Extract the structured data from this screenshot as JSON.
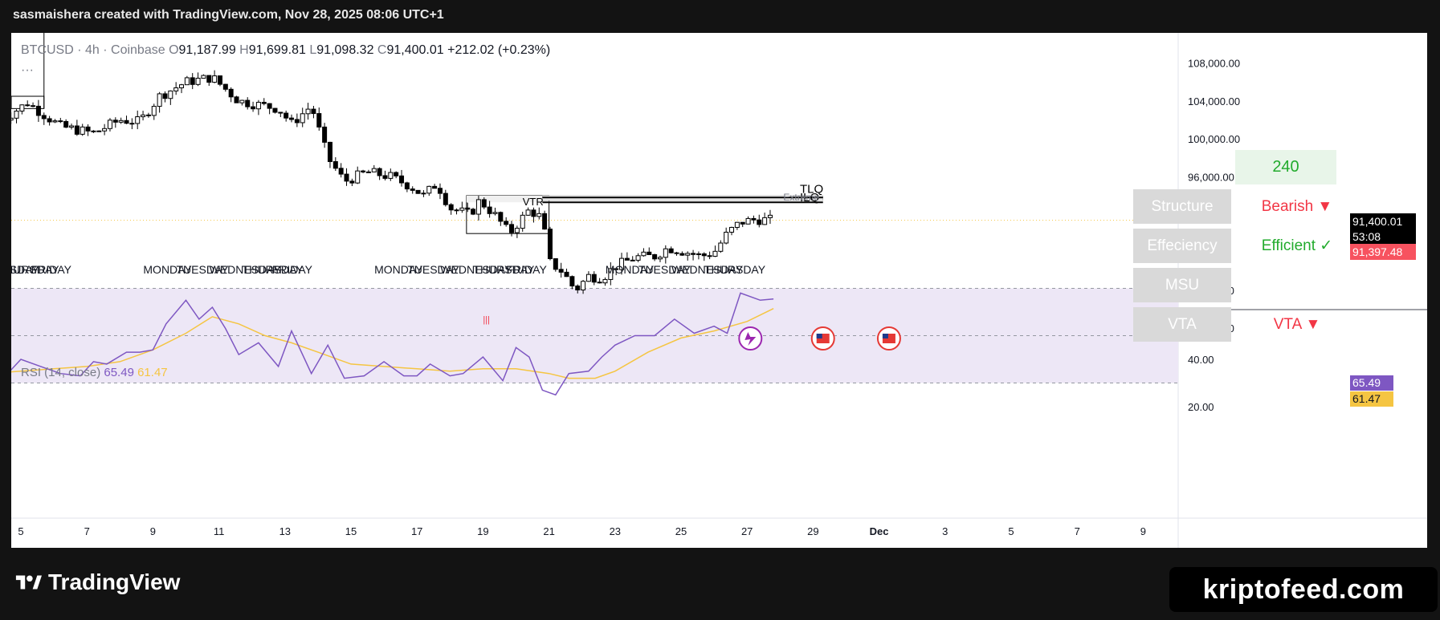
{
  "header": {
    "attribution": "sasmaishera created with TradingView.com, Nov 28, 2025 08:06 UTC+1"
  },
  "legend": {
    "symbol": "BTCUSD · 4h · Coinbase",
    "o_label": "O",
    "o_value": "91,187.99",
    "h_label": "H",
    "h_value": "91,699.81",
    "l_label": "L",
    "l_value": "91,098.32",
    "c_label": "C",
    "c_value": "91,400.01",
    "change": "+212.02 (+0.23%)",
    "more": "···"
  },
  "rsi_legend": {
    "label": "RSI (14, close)",
    "rsi_value": "65.49",
    "ma_value": "61.47"
  },
  "panel": {
    "timeframe": "240",
    "rows": [
      {
        "label": "Structure",
        "value": "Bearish ▼",
        "color": "#f23645"
      },
      {
        "label": "Effeciency",
        "value": "Efficient ✓",
        "color": "#22ab2d"
      },
      {
        "label": "MSU",
        "value": "",
        "color": "#f23645"
      },
      {
        "label": "VTA",
        "value": "VTA ▼",
        "color": "#f23645"
      }
    ]
  },
  "price_tags": {
    "last": "91,400.01",
    "countdown": "53:08",
    "secondary": "91,397.48",
    "rsi": "65.49",
    "rsi_ma": "61.47"
  },
  "annotations": {
    "tlq": "TLQ",
    "ilq": "ILQ",
    "extreme": "Extreme",
    "vtr": "VTR",
    "fib": "|||"
  },
  "day_labels": [
    {
      "text": "EDNESDAY",
      "x_date": 4.0
    },
    {
      "text": "THURSDAY",
      "x_date": 4.6
    },
    {
      "text": "FRIDAY",
      "x_date": 5.6
    },
    {
      "text": "MONDAY",
      "x_date": 9.0
    },
    {
      "text": "TUESDAY",
      "x_date": 10.0
    },
    {
      "text": "WEDNESDAY",
      "x_date": 11.0
    },
    {
      "text": "THURSDAY",
      "x_date": 12.0
    },
    {
      "text": "FRIDAY",
      "x_date": 12.9
    },
    {
      "text": "MONDAY",
      "x_date": 16.0
    },
    {
      "text": "TUESDAY",
      "x_date": 17.0
    },
    {
      "text": "WEDNESDAY",
      "x_date": 18.0
    },
    {
      "text": "THURSDAY",
      "x_date": 19.0
    },
    {
      "text": "FRIDAY",
      "x_date": 20.0
    },
    {
      "text": "MONDAY",
      "x_date": 23.0
    },
    {
      "text": "TUESDAY",
      "x_date": 24.0
    },
    {
      "text": "WEDNESDAY",
      "x_date": 25.0
    },
    {
      "text": "THURSDAY",
      "x_date": 26.0
    }
  ],
  "colors": {
    "up": "#ffffff",
    "down": "#000000",
    "rsi": "#7e57c2",
    "rsi_ma": "#f5c542",
    "rsi_band": "#ede7f6",
    "ob_fill": "#f0f0f0",
    "price_line": "#f5c542",
    "panel_cell": "#d9d9d9",
    "panel_240": "#e8f5e9",
    "bear_tag": "#f7525f"
  },
  "brand": {
    "tradingview": "TradingView",
    "site": "kriptofeed.com"
  },
  "chart_data": {
    "type": "candlestick",
    "symbol": "BTCUSD",
    "interval": "4h",
    "x_axis": {
      "ticks": [
        "5",
        "7",
        "9",
        "11",
        "13",
        "15",
        "17",
        "19",
        "21",
        "23",
        "25",
        "27",
        "29",
        "Dec",
        "3",
        "5",
        "7",
        "9"
      ],
      "tick_dates": [
        5,
        7,
        9,
        11,
        13,
        15,
        17,
        19,
        21,
        23,
        25,
        27,
        29,
        31,
        33,
        35,
        37,
        39
      ]
    },
    "y_axis": {
      "ticks": [
        108000,
        104000,
        100000,
        96000,
        92000,
        88000,
        84000,
        80000
      ],
      "tick_labels": [
        "108,000.00",
        "104,000.00",
        "100,000.00",
        "96,000.00",
        "",
        "",
        "84,000.00",
        "80,000.00"
      ],
      "range": [
        79000,
        109500
      ]
    },
    "last_price": 91400.01,
    "close_path": [
      [
        4.2,
        101500
      ],
      [
        5.2,
        103800
      ],
      [
        6.2,
        101300
      ],
      [
        7.2,
        100600
      ],
      [
        8.0,
        102000
      ],
      [
        8.6,
        101800
      ],
      [
        9.2,
        104500
      ],
      [
        10.0,
        106000
      ],
      [
        10.8,
        106500
      ],
      [
        11.6,
        104000
      ],
      [
        12.2,
        103600
      ],
      [
        12.8,
        103200
      ],
      [
        13.2,
        101600
      ],
      [
        13.8,
        103500
      ],
      [
        14.3,
        98000
      ],
      [
        14.8,
        95500
      ],
      [
        15.5,
        96500
      ],
      [
        16.2,
        96000
      ],
      [
        16.8,
        95000
      ],
      [
        17.2,
        94000
      ],
      [
        17.6,
        95300
      ],
      [
        18.0,
        92700
      ],
      [
        18.6,
        92000
      ],
      [
        18.9,
        93500
      ],
      [
        19.4,
        91800
      ],
      [
        19.8,
        90000
      ],
      [
        20.4,
        92500
      ],
      [
        20.8,
        91600
      ],
      [
        21.0,
        87000
      ],
      [
        21.4,
        86000
      ],
      [
        21.8,
        84000
      ],
      [
        22.2,
        85500
      ],
      [
        22.6,
        85300
      ],
      [
        23.0,
        86500
      ],
      [
        23.6,
        87500
      ],
      [
        24.2,
        87600
      ],
      [
        24.6,
        88500
      ],
      [
        25.2,
        88000
      ],
      [
        25.6,
        87600
      ],
      [
        26.0,
        88000
      ],
      [
        26.4,
        90000
      ],
      [
        26.8,
        91200
      ],
      [
        27.3,
        91500
      ],
      [
        27.8,
        91400
      ]
    ],
    "rsi": {
      "levels": [
        70,
        50,
        30
      ],
      "axis_ticks": [
        40,
        20
      ],
      "value": 65.49,
      "ma_value": 61.47,
      "rsi_path": [
        [
          4.0,
          24
        ],
        [
          4.4,
          31
        ],
        [
          5.0,
          40
        ],
        [
          5.6,
          37
        ],
        [
          6.2,
          34
        ],
        [
          6.8,
          33
        ],
        [
          7.2,
          39
        ],
        [
          7.6,
          38
        ],
        [
          8.2,
          43
        ],
        [
          8.6,
          43
        ],
        [
          9.0,
          44
        ],
        [
          9.4,
          55
        ],
        [
          10.0,
          65
        ],
        [
          10.4,
          57
        ],
        [
          10.8,
          62
        ],
        [
          11.2,
          53
        ],
        [
          11.6,
          42
        ],
        [
          12.2,
          47
        ],
        [
          12.8,
          37
        ],
        [
          13.2,
          52
        ],
        [
          13.8,
          34
        ],
        [
          14.3,
          46
        ],
        [
          14.8,
          32
        ],
        [
          15.4,
          33
        ],
        [
          16.0,
          39
        ],
        [
          16.6,
          33
        ],
        [
          17.0,
          33
        ],
        [
          17.4,
          38
        ],
        [
          18.0,
          33
        ],
        [
          18.4,
          34
        ],
        [
          19.0,
          41
        ],
        [
          19.6,
          31
        ],
        [
          20.0,
          45
        ],
        [
          20.4,
          41
        ],
        [
          20.8,
          27
        ],
        [
          21.2,
          25
        ],
        [
          21.6,
          34
        ],
        [
          22.2,
          35
        ],
        [
          22.6,
          41
        ],
        [
          23.0,
          46
        ],
        [
          23.6,
          50
        ],
        [
          24.2,
          50
        ],
        [
          24.8,
          57
        ],
        [
          25.4,
          51
        ],
        [
          26.0,
          54
        ],
        [
          26.4,
          51
        ],
        [
          26.8,
          68
        ],
        [
          27.4,
          65
        ],
        [
          27.8,
          65.49
        ]
      ],
      "ma_path": [
        [
          4.0,
          34
        ],
        [
          5.0,
          35
        ],
        [
          6.0,
          36
        ],
        [
          7.0,
          37
        ],
        [
          8.0,
          39
        ],
        [
          9.0,
          44
        ],
        [
          10.0,
          51
        ],
        [
          10.8,
          58
        ],
        [
          11.6,
          55
        ],
        [
          12.4,
          50
        ],
        [
          13.2,
          47
        ],
        [
          14.0,
          43
        ],
        [
          15.0,
          38
        ],
        [
          16.0,
          37
        ],
        [
          17.0,
          36
        ],
        [
          18.0,
          35
        ],
        [
          19.0,
          36
        ],
        [
          20.0,
          36
        ],
        [
          21.0,
          34
        ],
        [
          21.6,
          32
        ],
        [
          22.4,
          32
        ],
        [
          23.0,
          35
        ],
        [
          24.0,
          43
        ],
        [
          25.0,
          49
        ],
        [
          26.0,
          52
        ],
        [
          27.0,
          56
        ],
        [
          27.8,
          61.47
        ]
      ]
    }
  }
}
